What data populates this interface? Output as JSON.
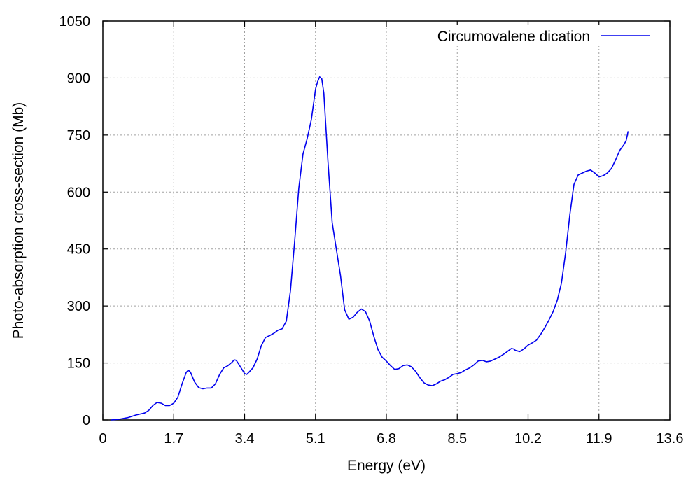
{
  "chart_data": {
    "type": "line",
    "xlabel": "Energy (eV)",
    "ylabel": "Photo-absorption cross-section (Mb)",
    "xlim": [
      0,
      13.6
    ],
    "ylim": [
      0,
      1050
    ],
    "xticks": [
      0,
      1.7,
      3.4,
      5.1,
      6.8,
      8.5,
      10.2,
      11.9,
      13.6
    ],
    "xtick_labels": [
      "0",
      "1.7",
      "3.4",
      "5.1",
      "6.8",
      "8.5",
      "10.2",
      "11.9",
      "13.6"
    ],
    "yticks": [
      0,
      150,
      300,
      450,
      600,
      750,
      900,
      1050
    ],
    "ytick_labels": [
      "0",
      "150",
      "300",
      "450",
      "600",
      "750",
      "900",
      "1050"
    ],
    "grid": true,
    "legend_position": "top-right",
    "series": [
      {
        "name": "Circumovalene dication",
        "color": "#0000ee",
        "points": [
          [
            0.2,
            0
          ],
          [
            0.4,
            2
          ],
          [
            0.6,
            6
          ],
          [
            0.8,
            13
          ],
          [
            1.0,
            18
          ],
          [
            1.1,
            25
          ],
          [
            1.2,
            38
          ],
          [
            1.3,
            46
          ],
          [
            1.4,
            44
          ],
          [
            1.5,
            38
          ],
          [
            1.6,
            38
          ],
          [
            1.7,
            44
          ],
          [
            1.8,
            60
          ],
          [
            1.9,
            95
          ],
          [
            2.0,
            125
          ],
          [
            2.05,
            131
          ],
          [
            2.1,
            126
          ],
          [
            2.2,
            100
          ],
          [
            2.3,
            85
          ],
          [
            2.4,
            82
          ],
          [
            2.5,
            84
          ],
          [
            2.6,
            84
          ],
          [
            2.7,
            95
          ],
          [
            2.8,
            120
          ],
          [
            2.9,
            137
          ],
          [
            3.0,
            143
          ],
          [
            3.1,
            152
          ],
          [
            3.15,
            158
          ],
          [
            3.2,
            157
          ],
          [
            3.3,
            140
          ],
          [
            3.4,
            122
          ],
          [
            3.45,
            120
          ],
          [
            3.5,
            125
          ],
          [
            3.6,
            137
          ],
          [
            3.7,
            160
          ],
          [
            3.8,
            195
          ],
          [
            3.9,
            217
          ],
          [
            4.0,
            222
          ],
          [
            4.1,
            228
          ],
          [
            4.2,
            236
          ],
          [
            4.3,
            240
          ],
          [
            4.4,
            260
          ],
          [
            4.5,
            340
          ],
          [
            4.6,
            470
          ],
          [
            4.7,
            610
          ],
          [
            4.8,
            700
          ],
          [
            4.9,
            740
          ],
          [
            5.0,
            790
          ],
          [
            5.1,
            870
          ],
          [
            5.15,
            890
          ],
          [
            5.2,
            903
          ],
          [
            5.25,
            898
          ],
          [
            5.3,
            860
          ],
          [
            5.4,
            680
          ],
          [
            5.5,
            520
          ],
          [
            5.6,
            450
          ],
          [
            5.7,
            380
          ],
          [
            5.8,
            290
          ],
          [
            5.9,
            265
          ],
          [
            6.0,
            270
          ],
          [
            6.1,
            283
          ],
          [
            6.2,
            292
          ],
          [
            6.3,
            285
          ],
          [
            6.4,
            260
          ],
          [
            6.5,
            220
          ],
          [
            6.6,
            185
          ],
          [
            6.7,
            165
          ],
          [
            6.8,
            155
          ],
          [
            6.9,
            143
          ],
          [
            7.0,
            133
          ],
          [
            7.1,
            135
          ],
          [
            7.2,
            143
          ],
          [
            7.3,
            145
          ],
          [
            7.4,
            140
          ],
          [
            7.5,
            128
          ],
          [
            7.6,
            112
          ],
          [
            7.7,
            98
          ],
          [
            7.8,
            92
          ],
          [
            7.9,
            90
          ],
          [
            8.0,
            95
          ],
          [
            8.1,
            102
          ],
          [
            8.2,
            106
          ],
          [
            8.3,
            112
          ],
          [
            8.4,
            120
          ],
          [
            8.5,
            122
          ],
          [
            8.6,
            125
          ],
          [
            8.7,
            132
          ],
          [
            8.8,
            137
          ],
          [
            8.9,
            145
          ],
          [
            9.0,
            155
          ],
          [
            9.1,
            157
          ],
          [
            9.2,
            153
          ],
          [
            9.3,
            155
          ],
          [
            9.4,
            160
          ],
          [
            9.5,
            165
          ],
          [
            9.6,
            172
          ],
          [
            9.7,
            180
          ],
          [
            9.8,
            188
          ],
          [
            9.85,
            187
          ],
          [
            9.9,
            183
          ],
          [
            10.0,
            180
          ],
          [
            10.1,
            187
          ],
          [
            10.2,
            197
          ],
          [
            10.3,
            203
          ],
          [
            10.4,
            210
          ],
          [
            10.5,
            225
          ],
          [
            10.6,
            243
          ],
          [
            10.7,
            263
          ],
          [
            10.8,
            285
          ],
          [
            10.9,
            315
          ],
          [
            11.0,
            360
          ],
          [
            11.1,
            440
          ],
          [
            11.2,
            540
          ],
          [
            11.3,
            620
          ],
          [
            11.4,
            645
          ],
          [
            11.5,
            650
          ],
          [
            11.6,
            655
          ],
          [
            11.7,
            658
          ],
          [
            11.8,
            650
          ],
          [
            11.9,
            640
          ],
          [
            12.0,
            643
          ],
          [
            12.1,
            650
          ],
          [
            12.2,
            662
          ],
          [
            12.3,
            685
          ],
          [
            12.4,
            710
          ],
          [
            12.5,
            725
          ],
          [
            12.55,
            735
          ],
          [
            12.6,
            760
          ]
        ]
      }
    ]
  }
}
